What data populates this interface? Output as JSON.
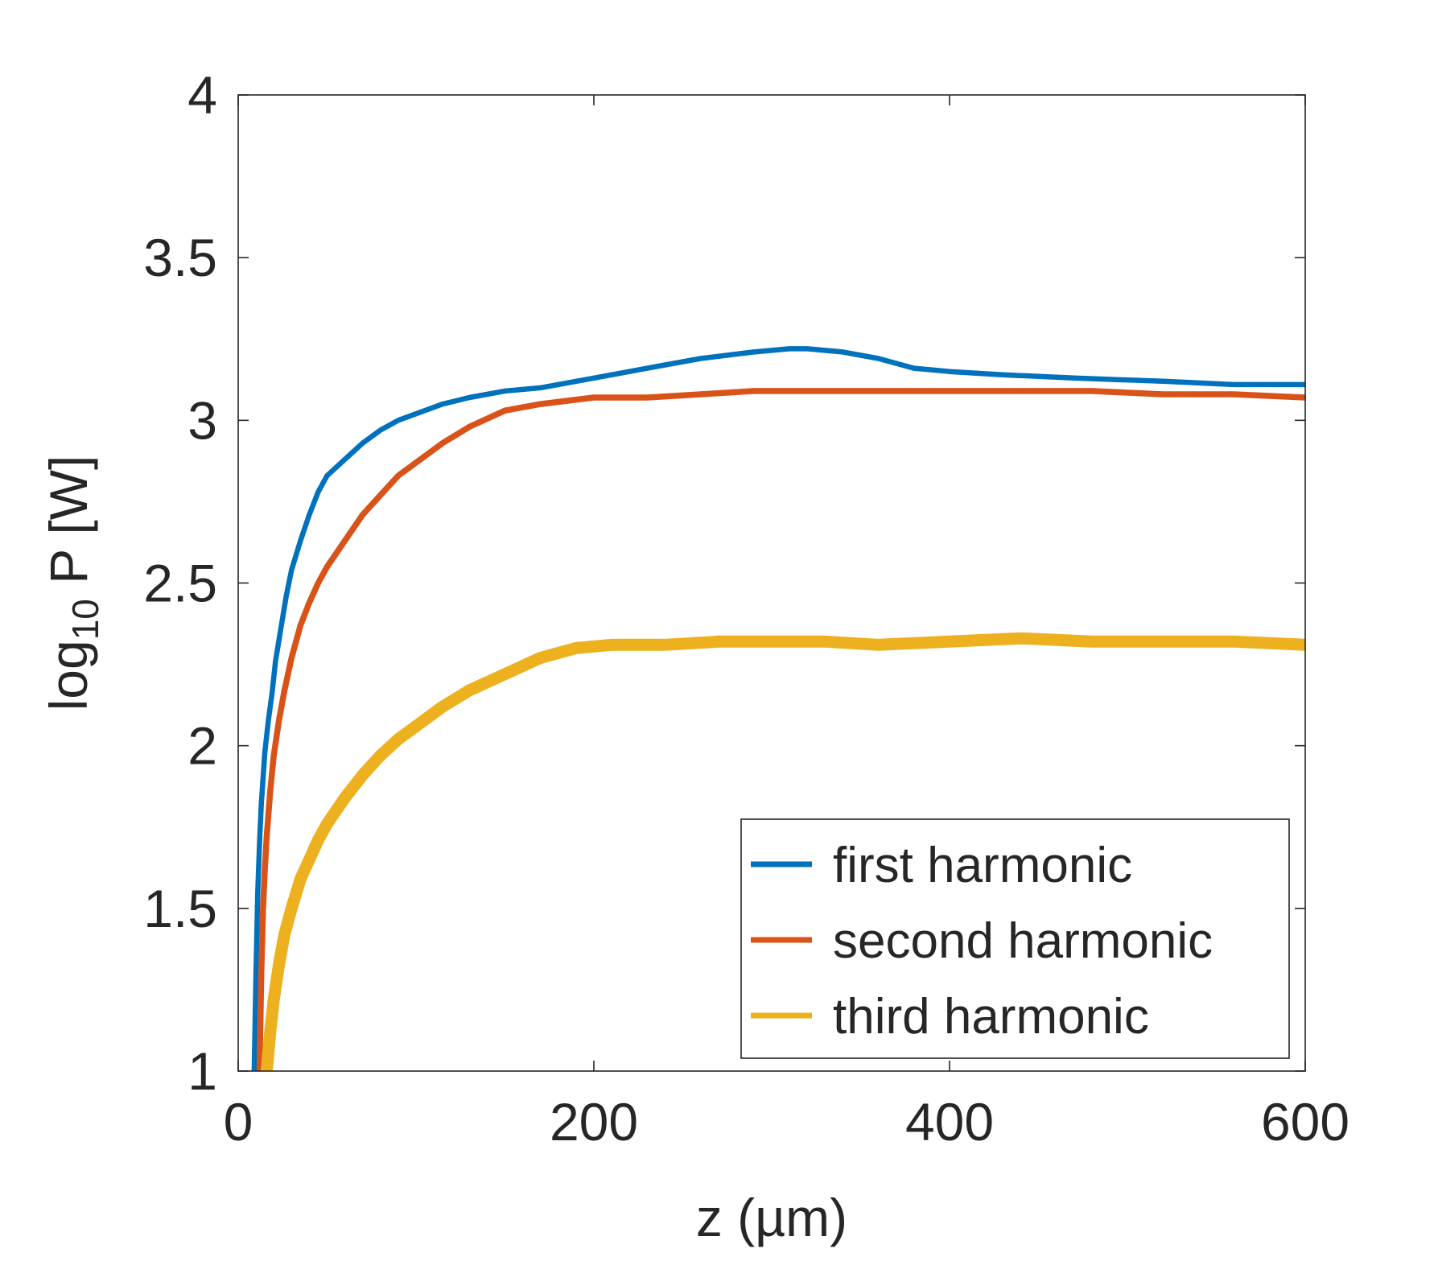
{
  "chart_data": {
    "type": "line",
    "title": "",
    "xlabel": "z (µm)",
    "ylabel_main": "log",
    "ylabel_sub": "10",
    "ylabel_tail": " P [W]",
    "xlim": [
      0,
      600
    ],
    "ylim": [
      1,
      4
    ],
    "xticks": [
      0,
      200,
      400,
      600
    ],
    "yticks": [
      1,
      1.5,
      2,
      2.5,
      3,
      3.5,
      4
    ],
    "xtick_labels": [
      "0",
      "200",
      "400",
      "600"
    ],
    "ytick_labels": [
      "1",
      "1.5",
      "2",
      "2.5",
      "3",
      "3.5",
      "4"
    ],
    "grid": false,
    "legend_position": "bottom-right",
    "series": [
      {
        "name": "first harmonic",
        "color": "#0072BD",
        "x": [
          9,
          10,
          11,
          12,
          13,
          14,
          15,
          17,
          19,
          21,
          24,
          27,
          30,
          35,
          40,
          45,
          50,
          56,
          62,
          70,
          80,
          90,
          100,
          115,
          130,
          150,
          170,
          200,
          230,
          260,
          290,
          310,
          320,
          340,
          360,
          380,
          400,
          430,
          470,
          520,
          560,
          600
        ],
        "y": [
          1.0,
          1.3,
          1.55,
          1.7,
          1.82,
          1.9,
          1.98,
          2.08,
          2.16,
          2.26,
          2.36,
          2.46,
          2.54,
          2.63,
          2.71,
          2.78,
          2.83,
          2.86,
          2.89,
          2.93,
          2.97,
          3.0,
          3.02,
          3.05,
          3.07,
          3.09,
          3.1,
          3.13,
          3.16,
          3.19,
          3.21,
          3.22,
          3.22,
          3.21,
          3.19,
          3.16,
          3.15,
          3.14,
          3.13,
          3.12,
          3.11,
          3.11
        ]
      },
      {
        "name": "second harmonic",
        "color": "#D95319",
        "x": [
          12,
          13,
          14,
          15,
          16,
          18,
          20,
          23,
          26,
          30,
          35,
          40,
          45,
          50,
          60,
          70,
          80,
          90,
          100,
          115,
          130,
          150,
          170,
          200,
          230,
          260,
          290,
          320,
          360,
          400,
          440,
          480,
          520,
          560,
          600
        ],
        "y": [
          1.0,
          1.3,
          1.5,
          1.62,
          1.72,
          1.86,
          1.97,
          2.08,
          2.17,
          2.27,
          2.37,
          2.44,
          2.5,
          2.55,
          2.63,
          2.71,
          2.77,
          2.83,
          2.87,
          2.93,
          2.98,
          3.03,
          3.05,
          3.07,
          3.07,
          3.08,
          3.09,
          3.09,
          3.09,
          3.09,
          3.09,
          3.09,
          3.08,
          3.08,
          3.07
        ]
      },
      {
        "name": "third harmonic",
        "color": "#EDB120",
        "x": [
          16,
          18,
          20,
          23,
          26,
          30,
          35,
          40,
          45,
          50,
          60,
          70,
          80,
          90,
          100,
          115,
          130,
          150,
          170,
          190,
          210,
          240,
          270,
          300,
          330,
          360,
          400,
          440,
          480,
          520,
          560,
          600
        ],
        "y": [
          1.0,
          1.12,
          1.22,
          1.33,
          1.42,
          1.5,
          1.59,
          1.65,
          1.71,
          1.76,
          1.84,
          1.91,
          1.97,
          2.02,
          2.06,
          2.12,
          2.17,
          2.22,
          2.27,
          2.3,
          2.31,
          2.31,
          2.32,
          2.32,
          2.32,
          2.31,
          2.32,
          2.33,
          2.32,
          2.32,
          2.32,
          2.31
        ]
      }
    ]
  }
}
